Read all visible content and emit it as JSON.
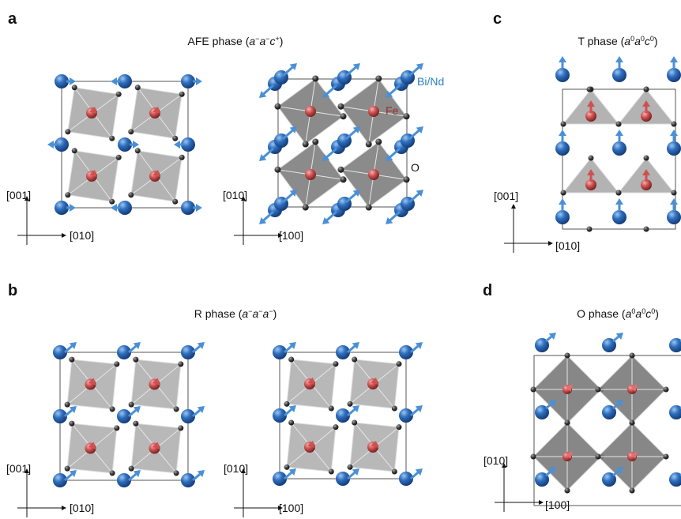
{
  "panels": [
    {
      "label": "a",
      "title": {
        "lead": "AFE phase (",
        "terms": [
          {
            "base": "a",
            "sup": "−"
          },
          {
            "base": "a",
            "sup": "−"
          },
          {
            "base": "c",
            "sup": "+"
          }
        ],
        "tail": ")"
      },
      "species": [
        "Bi/Nd",
        "Fe",
        "O"
      ],
      "axes": [
        {
          "vertical": "[001]",
          "horizontal": "[010]"
        },
        {
          "vertical": "[010]",
          "horizontal": "[100]"
        }
      ]
    },
    {
      "label": "b",
      "title": {
        "lead": "R phase (",
        "terms": [
          {
            "base": "a",
            "sup": "−"
          },
          {
            "base": "a",
            "sup": "−"
          },
          {
            "base": "a",
            "sup": "−"
          }
        ],
        "tail": ")"
      },
      "axes": [
        {
          "vertical": "[001]",
          "horizontal": "[010]"
        },
        {
          "vertical": "[010]",
          "horizontal": "[100]"
        }
      ]
    },
    {
      "label": "c",
      "title": {
        "lead": "T phase (",
        "terms": [
          {
            "base": "a",
            "sup": "0"
          },
          {
            "base": "a",
            "sup": "0"
          },
          {
            "base": "c",
            "sup": "0"
          }
        ],
        "tail": ")"
      },
      "axes": [
        {
          "vertical": "[001]",
          "horizontal": "[010]"
        }
      ]
    },
    {
      "label": "d",
      "title": {
        "lead": "O phase (",
        "terms": [
          {
            "base": "a",
            "sup": "0"
          },
          {
            "base": "a",
            "sup": "0"
          },
          {
            "base": "c",
            "sup": "0"
          }
        ],
        "tail": ")"
      },
      "axes": [
        {
          "vertical": "[010]",
          "horizontal": "[100]"
        }
      ]
    }
  ]
}
